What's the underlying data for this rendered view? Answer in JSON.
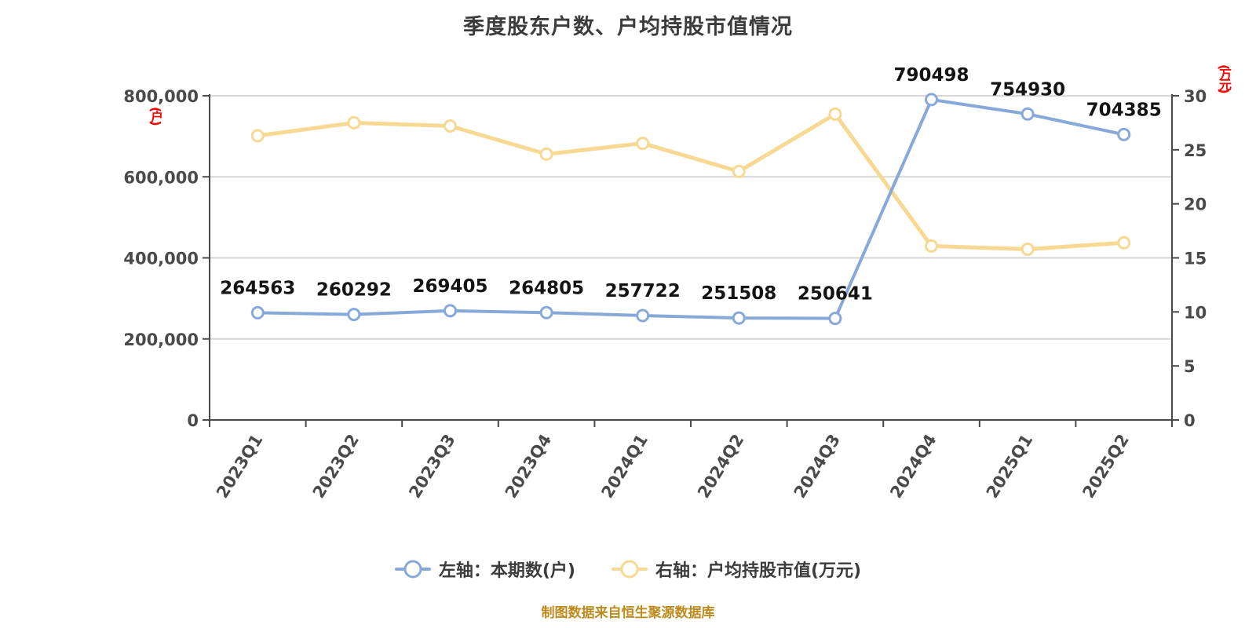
{
  "source_note": "制图数据来自恒生聚源数据库",
  "colors": {
    "shareholders_line": "#87a9d9",
    "market_value_line": "#f7d993",
    "grid": "#d6d6d6",
    "axis": "#4a4a4a",
    "data_label": "#141414",
    "title_text": "#3c3c3c",
    "axis_unit_red": "#ff0000",
    "footer_gold": "#be8a1c",
    "marker_fill": "#ffffff"
  },
  "chart_data": {
    "type": "line",
    "title": "季度股东户数、户均持股市值情况",
    "categories": [
      "2023Q1",
      "2023Q2",
      "2023Q3",
      "2023Q4",
      "2024Q1",
      "2024Q2",
      "2024Q3",
      "2024Q4",
      "2025Q1",
      "2025Q2"
    ],
    "series": [
      {
        "name": "左轴：本期数(户)",
        "axis": "left",
        "color": "#87a9d9",
        "values": [
          264563,
          260292,
          269405,
          264805,
          257722,
          251508,
          250641,
          790498,
          754930,
          704385
        ],
        "show_labels": true
      },
      {
        "name": "右轴：户均持股市值(万元)",
        "axis": "right",
        "color": "#f7d993",
        "values": [
          26.3,
          27.5,
          27.2,
          24.6,
          25.6,
          23.0,
          28.3,
          16.1,
          15.8,
          16.4
        ],
        "show_labels": false
      }
    ],
    "left_axis": {
      "name": "(户)",
      "min": 0,
      "max": 800000,
      "step": 200000,
      "tick_labels": [
        "0",
        "200,000",
        "400,000",
        "600,000",
        "800,000"
      ]
    },
    "right_axis": {
      "name": "(万元)",
      "min": 0,
      "max": 30,
      "step": 5,
      "tick_labels": [
        "0",
        "5",
        "10",
        "15",
        "20",
        "25",
        "30"
      ]
    },
    "grid": true,
    "legend_position": "bottom",
    "x_label_rotation": -58
  }
}
